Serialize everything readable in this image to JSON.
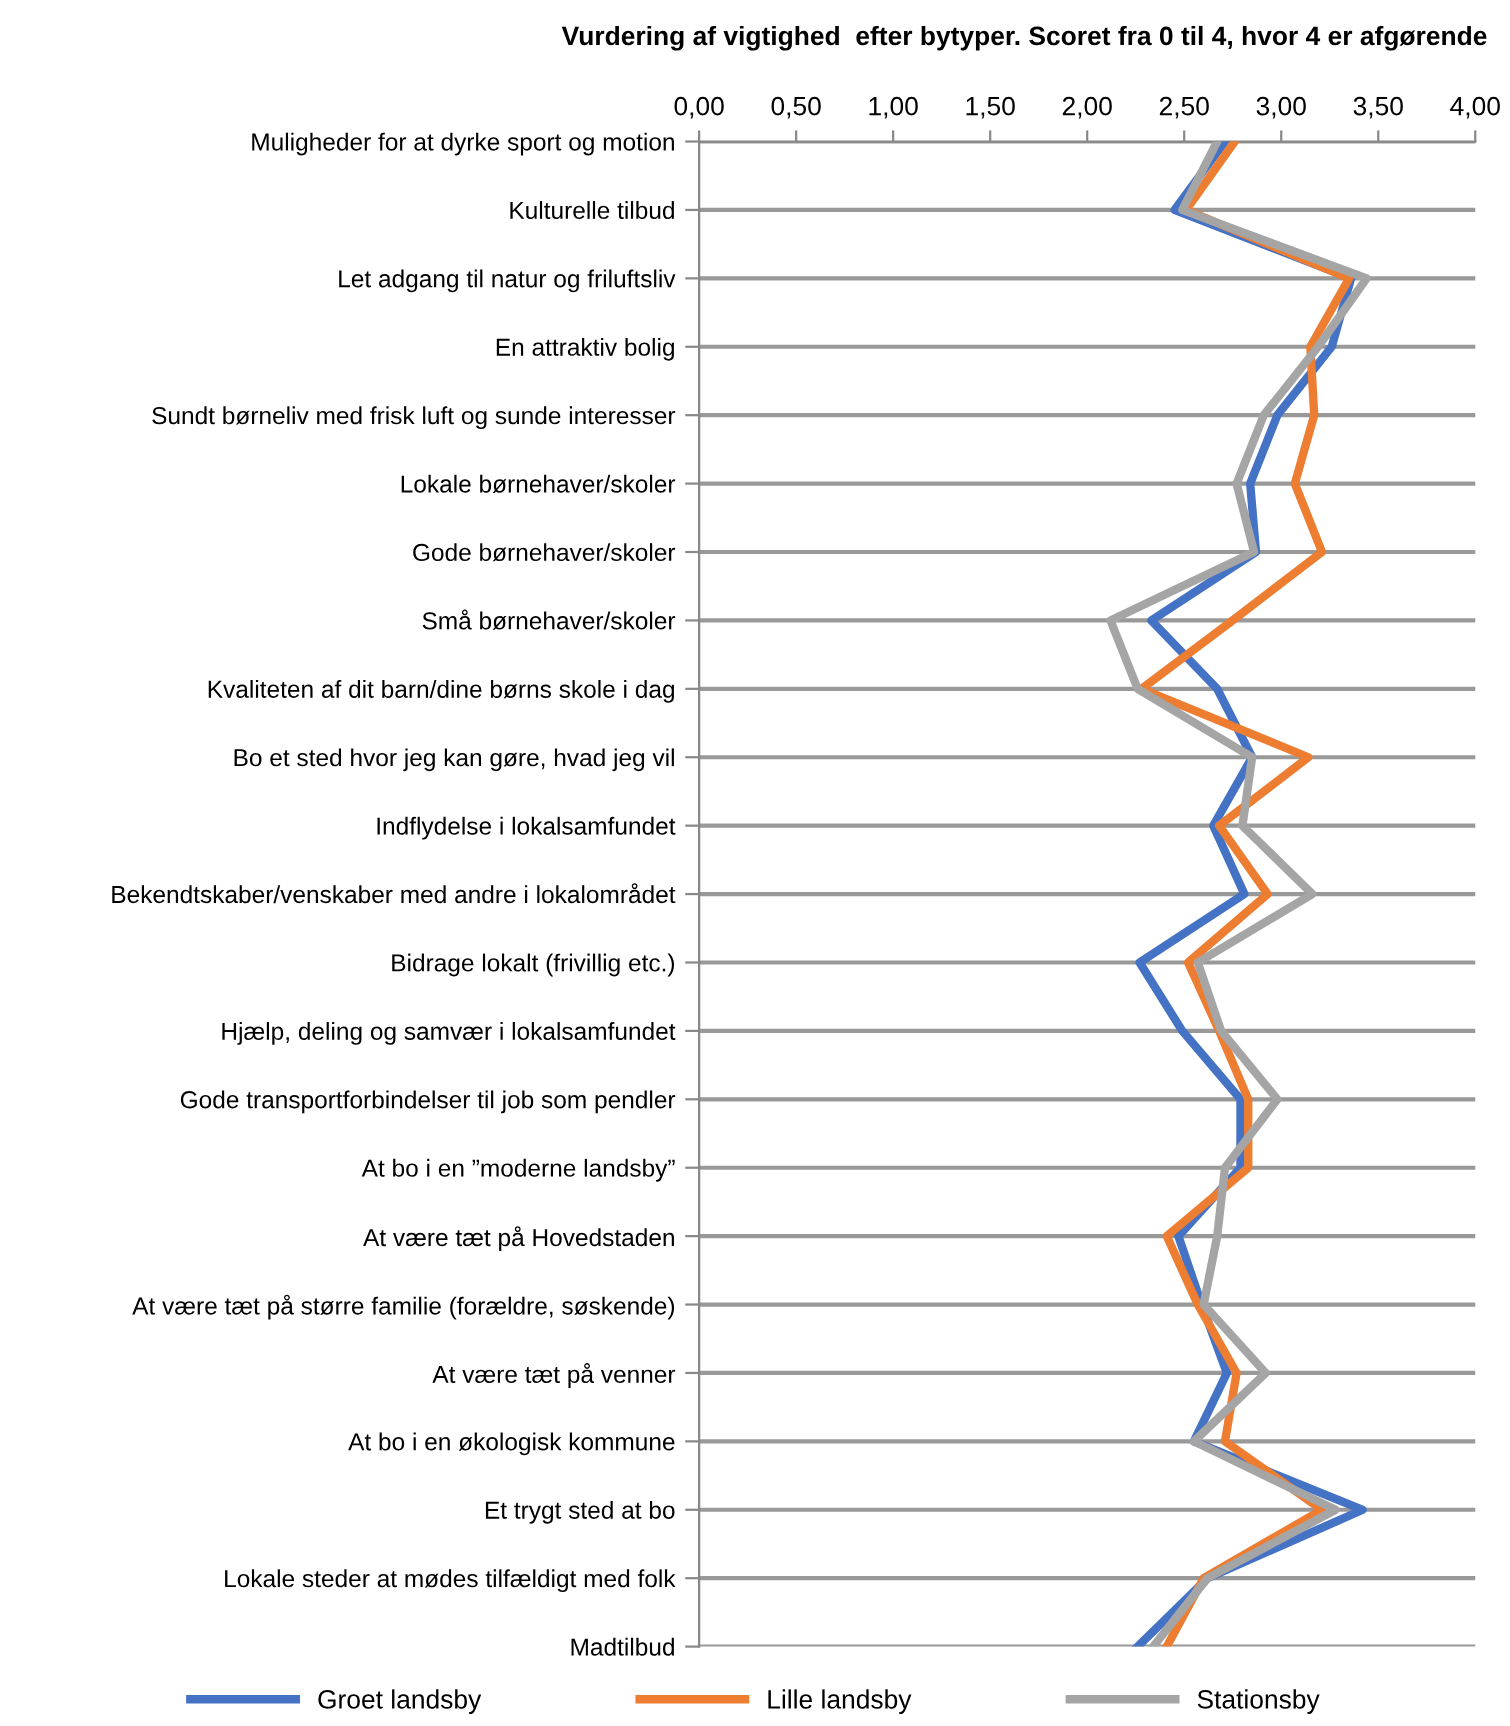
{
  "chart_data": {
    "type": "line",
    "orientation": "horizontal",
    "title": "Vurdering af vigtighed  efter bytyper. Scoret fra 0 til 4, hvor 4 er afgørende",
    "categories": [
      "Muligheder for at dyrke sport og motion",
      "Kulturelle tilbud",
      "Let adgang til natur og friluftsliv",
      "En attraktiv bolig",
      "Sundt børneliv med frisk luft og sunde interesser",
      "Lokale børnehaver/skoler",
      "Gode børnehaver/skoler",
      "Små børnehaver/skoler",
      "Kvaliteten af dit barn/dine børns skole i dag",
      "Bo et sted hvor jeg kan gøre, hvad jeg vil",
      "Indflydelse i lokalsamfundet",
      "Bekendtskaber/venskaber med andre i lokalområdet",
      "Bidrage lokalt (frivillig etc.)",
      "Hjælp, deling og samvær i lokalsamfundet",
      "Gode transportforbindelser til job som pendler",
      "At bo i en ”moderne landsby”",
      "At være tæt på Hovedstaden",
      "At være tæt på større familie (forældre, søskende)",
      "At være tæt på venner",
      "At bo i en økologisk kommune",
      "Et trygt sted at bo",
      "Lokale steder at mødes tilfældigt med folk",
      "Madtilbud"
    ],
    "series": [
      {
        "name": "Groet landsby",
        "color": "#4472c4",
        "values": [
          2.71,
          2.45,
          3.36,
          3.26,
          2.98,
          2.84,
          2.87,
          2.33,
          2.67,
          2.85,
          2.65,
          2.81,
          2.27,
          2.49,
          2.79,
          2.79,
          2.47,
          2.59,
          2.72,
          2.55,
          3.42,
          2.62,
          2.26
        ]
      },
      {
        "name": "Lille landsby",
        "color": "#ed7d31",
        "values": [
          2.76,
          2.51,
          3.35,
          3.15,
          3.17,
          3.07,
          3.21,
          2.75,
          2.28,
          3.14,
          2.68,
          2.93,
          2.52,
          2.68,
          2.83,
          2.83,
          2.41,
          2.57,
          2.77,
          2.71,
          3.21,
          2.6,
          2.41
        ]
      },
      {
        "name": "Stationsby",
        "color": "#a5a5a5",
        "values": [
          2.67,
          2.49,
          3.44,
          3.19,
          2.91,
          2.77,
          2.86,
          2.12,
          2.26,
          2.85,
          2.8,
          3.16,
          2.57,
          2.69,
          2.98,
          2.71,
          2.67,
          2.6,
          2.92,
          2.55,
          3.28,
          2.62,
          2.34
        ]
      }
    ],
    "xlim": [
      0,
      4
    ],
    "xticks": [
      {
        "value": 0,
        "label": "0,00"
      },
      {
        "value": 0.5,
        "label": "0,50"
      },
      {
        "value": 1,
        "label": "1,00"
      },
      {
        "value": 1.5,
        "label": "1,50"
      },
      {
        "value": 2,
        "label": "2,00"
      },
      {
        "value": 2.5,
        "label": "2,50"
      },
      {
        "value": 3,
        "label": "3,00"
      },
      {
        "value": 3.5,
        "label": "3,50"
      },
      {
        "value": 4,
        "label": "4,00"
      }
    ],
    "grid": "y",
    "legend": "bottom",
    "marker": "none",
    "line_style": "solid"
  }
}
